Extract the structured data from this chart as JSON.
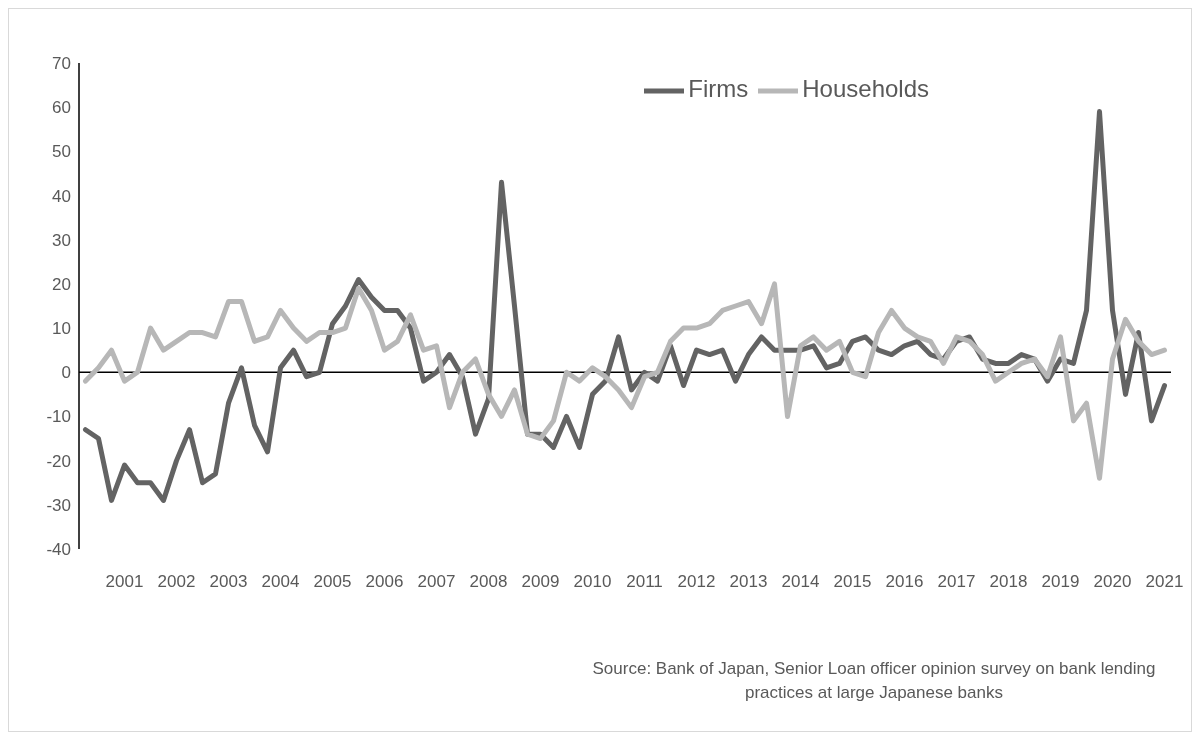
{
  "chart_data": {
    "type": "line",
    "categories": [
      null,
      null,
      null,
      "2001",
      null,
      null,
      null,
      "2002",
      null,
      null,
      null,
      "2003",
      null,
      null,
      null,
      "2004",
      null,
      null,
      null,
      "2005",
      null,
      null,
      null,
      "2006",
      null,
      null,
      null,
      "2007",
      null,
      null,
      null,
      "2008",
      null,
      null,
      null,
      "2009",
      null,
      null,
      null,
      "2010",
      null,
      null,
      null,
      "2011",
      null,
      null,
      null,
      "2012",
      null,
      null,
      null,
      "2013",
      null,
      null,
      null,
      "2014",
      null,
      null,
      null,
      "2015",
      null,
      null,
      null,
      "2016",
      null,
      null,
      null,
      "2017",
      null,
      null,
      null,
      "2018",
      null,
      null,
      null,
      "2019",
      null,
      null,
      null,
      "2020",
      null,
      null,
      null,
      "2021"
    ],
    "series": [
      {
        "name": "Firms",
        "color": "#636363",
        "values": [
          -13,
          -15,
          -29,
          -21,
          -25,
          -25,
          -29,
          -20,
          -13,
          -25,
          -23,
          -7,
          1,
          -12,
          -18,
          1,
          5,
          -1,
          0,
          11,
          15,
          21,
          17,
          14,
          14,
          10,
          -2,
          0,
          4,
          -1,
          -14,
          -6,
          43,
          15,
          -14,
          -14,
          -17,
          -10,
          -17,
          -5,
          -2,
          8,
          -4,
          0,
          -2,
          6,
          -3,
          5,
          4,
          5,
          -2,
          4,
          8,
          5,
          5,
          5,
          6,
          1,
          2,
          7,
          8,
          5,
          4,
          6,
          7,
          4,
          3,
          7,
          8,
          3,
          2,
          2,
          4,
          3,
          -2,
          3,
          2,
          14,
          59,
          14,
          -5,
          9,
          -11,
          -3
        ]
      },
      {
        "name": "Households",
        "color": "#b7b7b7",
        "values": [
          -2,
          1,
          5,
          -2,
          0,
          10,
          5,
          7,
          9,
          9,
          8,
          16,
          16,
          7,
          8,
          14,
          10,
          7,
          9,
          9,
          10,
          19,
          14,
          5,
          7,
          13,
          5,
          6,
          -8,
          0,
          3,
          -5,
          -10,
          -4,
          -14,
          -15,
          -11,
          0,
          -2,
          1,
          -1,
          -4,
          -8,
          -1,
          0,
          7,
          10,
          10,
          11,
          14,
          15,
          16,
          11,
          20,
          -10,
          6,
          8,
          5,
          7,
          0,
          -1,
          9,
          14,
          10,
          8,
          7,
          2,
          8,
          7,
          4,
          -2,
          0,
          2,
          3,
          -1,
          8,
          -11,
          -7,
          -24,
          3,
          12,
          7,
          4,
          5
        ]
      }
    ],
    "ylim": [
      -40,
      70
    ],
    "yticks": [
      -40,
      -30,
      -20,
      -10,
      0,
      10,
      20,
      30,
      40,
      50,
      60,
      70
    ],
    "ref_lines": [
      {
        "axis": "y",
        "value": 0,
        "color": "#000000"
      }
    ],
    "legend": "top right",
    "annotations": [
      "Source: Bank of Japan, Senior Loan officer opinion survey on bank  lending practices at large Japanese banks"
    ]
  }
}
